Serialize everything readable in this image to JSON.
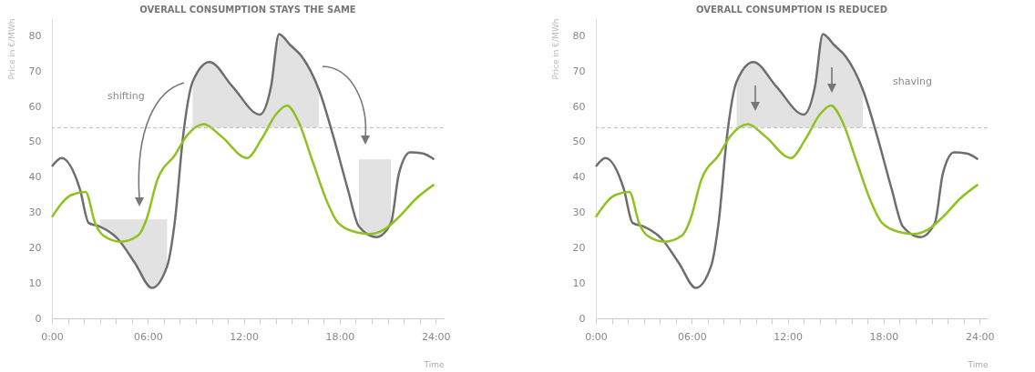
{
  "chart_data": [
    {
      "type": "line",
      "title": "OVERALL CONSUMPTION STAYS THE SAME",
      "xlabel": "Time",
      "ylabel": "Price in €/MWh",
      "xlim": [
        0,
        24.5
      ],
      "ylim": [
        0,
        85
      ],
      "xticks": [
        {
          "value": 0,
          "label": "0:00"
        },
        {
          "value": 1,
          "label": null
        },
        {
          "value": 2,
          "label": null
        },
        {
          "value": 3,
          "label": null
        },
        {
          "value": 4,
          "label": null
        },
        {
          "value": 5,
          "label": null
        },
        {
          "value": 6,
          "label": "06:00"
        },
        {
          "value": 7,
          "label": null
        },
        {
          "value": 8,
          "label": null
        },
        {
          "value": 9,
          "label": null
        },
        {
          "value": 10,
          "label": null
        },
        {
          "value": 11,
          "label": null
        },
        {
          "value": 12,
          "label": "12:00"
        },
        {
          "value": 13,
          "label": null
        },
        {
          "value": 14,
          "label": null
        },
        {
          "value": 15,
          "label": null
        },
        {
          "value": 16,
          "label": null
        },
        {
          "value": 17,
          "label": null
        },
        {
          "value": 18,
          "label": "18:00"
        },
        {
          "value": 19,
          "label": null
        },
        {
          "value": 20,
          "label": null
        },
        {
          "value": 21,
          "label": null
        },
        {
          "value": 22,
          "label": null
        },
        {
          "value": 23,
          "label": null
        },
        {
          "value": 24,
          "label": "24:00"
        }
      ],
      "yticks": [
        0,
        10,
        20,
        30,
        40,
        50,
        60,
        70,
        80
      ],
      "ref_lines": [
        {
          "axis": "y",
          "value": 54,
          "line_style": "dashed",
          "color": "#bbbbbb"
        }
      ],
      "annotations": [
        "shifting"
      ],
      "series": [
        {
          "color": "#6e6e6e",
          "x": [
            0,
            0.6,
            1.75,
            2.3,
            3,
            4.1,
            5.2,
            6.25,
            7.2,
            7.7,
            8.2,
            8.8,
            9.85,
            11.3,
            13,
            13.7,
            14.2,
            14.9,
            15.6,
            16.7,
            17.6,
            18.5,
            19.2,
            20.3,
            21.2,
            21.7,
            22.4,
            23.2,
            23.9
          ],
          "values": [
            43,
            45.4,
            36.6,
            27,
            26,
            22.6,
            15.6,
            8.6,
            14.7,
            28,
            51.5,
            67,
            72.6,
            65.6,
            57.7,
            65.6,
            80.5,
            77.4,
            74.3,
            64.7,
            51.5,
            36.6,
            26,
            23,
            27,
            41,
            47,
            46.7,
            45
          ],
          "lower": [
            null,
            null,
            null,
            null,
            26,
            22.6,
            15.6,
            8.6,
            14.7,
            null,
            null,
            54,
            54,
            54,
            54,
            54,
            54,
            54,
            54,
            54,
            null,
            null,
            26,
            23,
            27,
            null,
            null,
            null,
            null
          ],
          "upper": [
            null,
            null,
            null,
            null,
            28,
            28,
            28,
            28,
            28,
            null,
            null,
            67,
            72.6,
            65.6,
            57.7,
            65.6,
            80.5,
            77.4,
            74.3,
            64.7,
            null,
            null,
            45,
            45,
            45,
            null,
            null,
            null,
            null
          ]
        },
        {
          "color": "#8dc21f",
          "x": [
            0,
            1.2,
            2.1,
            2.7,
            3.2,
            4.3,
            5.4,
            5.9,
            6.6,
            7.7,
            8.4,
            9.5,
            10.6,
            12.2,
            13.1,
            14,
            14.7,
            15.4,
            16.3,
            17.2,
            17.9,
            19,
            19.9,
            20.8,
            21.7,
            22.8,
            23.9
          ],
          "values": [
            28.7,
            34.9,
            35.8,
            27,
            23.5,
            21.7,
            23.5,
            27.9,
            39.3,
            46.3,
            51.5,
            55,
            51.5,
            45.4,
            50.7,
            57.7,
            60.3,
            55.9,
            44.5,
            33.1,
            27,
            24.4,
            23.9,
            25.2,
            28.7,
            34,
            37.9
          ]
        }
      ]
    },
    {
      "type": "line",
      "title": "OVERALL CONSUMPTION IS REDUCED",
      "xlabel": "Time",
      "ylabel": "Price in €/MWh",
      "xlim": [
        0,
        24.5
      ],
      "ylim": [
        0,
        85
      ],
      "xticks": [
        {
          "value": 0,
          "label": "0:00"
        },
        {
          "value": 1,
          "label": null
        },
        {
          "value": 2,
          "label": null
        },
        {
          "value": 3,
          "label": null
        },
        {
          "value": 4,
          "label": null
        },
        {
          "value": 5,
          "label": null
        },
        {
          "value": 6,
          "label": "06:00"
        },
        {
          "value": 7,
          "label": null
        },
        {
          "value": 8,
          "label": null
        },
        {
          "value": 9,
          "label": null
        },
        {
          "value": 10,
          "label": null
        },
        {
          "value": 11,
          "label": null
        },
        {
          "value": 12,
          "label": "12:00"
        },
        {
          "value": 13,
          "label": null
        },
        {
          "value": 14,
          "label": null
        },
        {
          "value": 15,
          "label": null
        },
        {
          "value": 16,
          "label": null
        },
        {
          "value": 17,
          "label": null
        },
        {
          "value": 18,
          "label": "18:00"
        },
        {
          "value": 19,
          "label": null
        },
        {
          "value": 20,
          "label": null
        },
        {
          "value": 21,
          "label": null
        },
        {
          "value": 22,
          "label": null
        },
        {
          "value": 23,
          "label": null
        },
        {
          "value": 24,
          "label": "24:00"
        }
      ],
      "yticks": [
        0,
        10,
        20,
        30,
        40,
        50,
        60,
        70,
        80
      ],
      "ref_lines": [
        {
          "axis": "y",
          "value": 54,
          "line_style": "dashed",
          "color": "#bbbbbb"
        }
      ],
      "annotations": [
        "shaving"
      ],
      "series": [
        {
          "color": "#6e6e6e",
          "x": [
            0,
            0.6,
            1.75,
            2.3,
            3,
            4.1,
            5.2,
            6.25,
            7.2,
            7.7,
            8.2,
            8.8,
            9.85,
            11.3,
            13,
            13.7,
            14.2,
            14.9,
            15.6,
            16.7,
            17.6,
            18.5,
            19.2,
            20.3,
            21.2,
            21.7,
            22.4,
            23.2,
            23.9
          ],
          "values": [
            43,
            45.4,
            36.6,
            27,
            26,
            22.6,
            15.6,
            8.6,
            14.7,
            28,
            51.5,
            67,
            72.6,
            65.6,
            57.7,
            65.6,
            80.5,
            77.4,
            74.3,
            64.7,
            51.5,
            36.6,
            26,
            23,
            27,
            41,
            47,
            46.7,
            45
          ],
          "lower": [
            null,
            null,
            null,
            null,
            null,
            null,
            null,
            null,
            null,
            null,
            null,
            54,
            54,
            54,
            54,
            54,
            54,
            54,
            54,
            54,
            null,
            null,
            null,
            null,
            null,
            null,
            null,
            null,
            null
          ],
          "upper": [
            null,
            null,
            null,
            null,
            null,
            null,
            null,
            null,
            null,
            null,
            null,
            67,
            72.6,
            65.6,
            57.7,
            65.6,
            80.5,
            77.4,
            74.3,
            64.7,
            null,
            null,
            null,
            null,
            null,
            null,
            null,
            null,
            null
          ]
        },
        {
          "color": "#8dc21f",
          "x": [
            0,
            1.2,
            2.1,
            2.7,
            3.2,
            4.3,
            5.4,
            5.9,
            6.6,
            7.7,
            8.4,
            9.5,
            10.6,
            12.2,
            13.1,
            14,
            14.7,
            15.4,
            16.3,
            17.2,
            17.9,
            19,
            19.9,
            20.8,
            21.7,
            22.8,
            23.9
          ],
          "values": [
            28.7,
            34.9,
            35.8,
            27,
            23.5,
            21.7,
            23.5,
            27.9,
            39.3,
            46.3,
            51.5,
            55,
            51.5,
            45.4,
            50.7,
            57.7,
            60.3,
            55.9,
            44.5,
            33.1,
            27,
            24.4,
            23.9,
            25.2,
            28.7,
            34,
            37.9
          ]
        }
      ]
    }
  ]
}
